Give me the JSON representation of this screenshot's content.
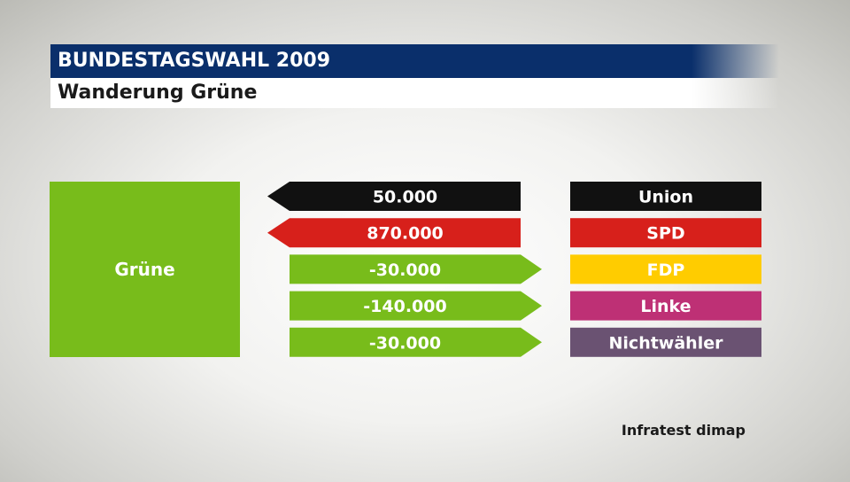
{
  "header": {
    "title": "BUNDESTAGSWAHL 2009",
    "subtitle": "Wanderung Grüne"
  },
  "colors": {
    "header_bg": "#0a2f6b",
    "gain": "#111111",
    "gain_spd": "#d7201b",
    "loss": "#78bc1b"
  },
  "chart_data": {
    "type": "table",
    "party": {
      "name": "Grüne",
      "color": "#78bc1b"
    },
    "columns": [
      "flow",
      "party"
    ],
    "rows": [
      {
        "value": 50000,
        "label": "50.000",
        "direction": "inflow",
        "arrow_color": "#111111",
        "party": "Union",
        "party_color": "#111111"
      },
      {
        "value": 870000,
        "label": "870.000",
        "direction": "inflow",
        "arrow_color": "#d7201b",
        "party": "SPD",
        "party_color": "#d7201b"
      },
      {
        "value": -30000,
        "label": "-30.000",
        "direction": "outflow",
        "arrow_color": "#78bc1b",
        "party": "FDP",
        "party_color": "#ffcc00"
      },
      {
        "value": -140000,
        "label": "-140.000",
        "direction": "outflow",
        "arrow_color": "#78bc1b",
        "party": "Linke",
        "party_color": "#be3075"
      },
      {
        "value": -30000,
        "label": "-30.000",
        "direction": "outflow",
        "arrow_color": "#78bc1b",
        "party": "Nichtwähler",
        "party_color": "#6a5272"
      }
    ]
  },
  "footer": {
    "source": "Infratest dimap"
  }
}
